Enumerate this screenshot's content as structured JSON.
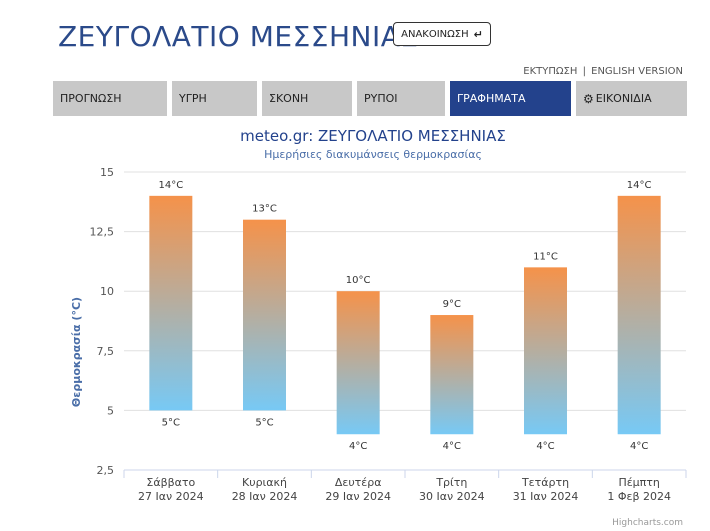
{
  "header": {
    "title": "ΖΕΥΓΟΛΑΤΙΟ ΜΕΣΣΗΝΙΑΣ",
    "announce_label": "ΑΝΑΚΟΙΝΩΣΗ",
    "announce_icon": "arrow-down-return-icon",
    "print_link": "ΕΚΤΥΠΩΣΗ",
    "link_separator": "|",
    "english_link": "ENGLISH VERSION"
  },
  "nav": {
    "tabs": [
      {
        "label": "ΠΡΟΓΝΩΣΗ",
        "active": false
      },
      {
        "label": "ΥΓΡΗ",
        "active": false
      },
      {
        "label": "ΣΚΟΝΗ",
        "active": false
      },
      {
        "label": "ΡΥΠΟΙ",
        "active": false
      },
      {
        "label": "ΓΡΑΦΗΜΑΤΑ",
        "active": true
      },
      {
        "label": "ΕΙΚΟΝΙΔΙΑ",
        "active": false,
        "icon": "gear-icon"
      }
    ],
    "colors": {
      "tab": "#c8c8c8",
      "active": "#23428c"
    }
  },
  "chart_data": {
    "type": "bar",
    "subtype": "columnrange",
    "title": "meteo.gr: ΖΕΥΓΟΛΑΤΙΟ ΜΕΣΣΗΝΙΑΣ",
    "subtitle": "Ημερήσιες διακυμάνσεις θερμοκρασίας",
    "ylabel": "Θερμοκρασία (°C)",
    "xlabel": "",
    "ylim": [
      2.5,
      15
    ],
    "yticks": [
      "2,5",
      "5",
      "7,5",
      "10",
      "12,5",
      "15"
    ],
    "ytick_values": [
      2.5,
      5,
      7.5,
      10,
      12.5,
      15
    ],
    "grid": true,
    "legend": "none",
    "categories": [
      [
        "Σάββατο",
        "27 Ιαν 2024"
      ],
      [
        "Κυριακή",
        "28 Ιαν 2024"
      ],
      [
        "Δευτέρα",
        "29 Ιαν 2024"
      ],
      [
        "Τρίτη",
        "30 Ιαν 2024"
      ],
      [
        "Τετάρτη",
        "31 Ιαν 2024"
      ],
      [
        "Πέμπτη",
        "1 Φεβ 2024"
      ]
    ],
    "low": [
      5,
      5,
      4,
      4,
      4,
      4
    ],
    "high": [
      14,
      13,
      10,
      9,
      11,
      14
    ],
    "low_labels": [
      "5°C",
      "5°C",
      "4°C",
      "4°C",
      "4°C",
      "4°C"
    ],
    "high_labels": [
      "14°C",
      "13°C",
      "10°C",
      "9°C",
      "11°C",
      "14°C"
    ],
    "colors": {
      "high": "#f5924a",
      "low": "#77c9f5",
      "title": "#23428c",
      "axis_title": "#4a6ea8"
    },
    "credits": "Highcharts.com"
  }
}
